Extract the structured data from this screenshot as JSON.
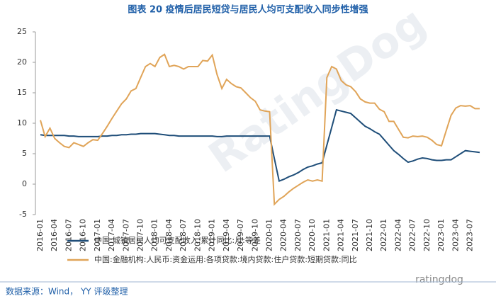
{
  "chart_data": {
    "type": "line",
    "title": "图表 20 疫情后居民短贷与居民人均可支配收入同步性增强",
    "source": "数据来源：Wind， YY 评级整理",
    "watermarks": [
      "RatingDog",
      "ratingdog"
    ],
    "categories": [
      "2016-01",
      null,
      null,
      "2016-04",
      null,
      null,
      "2016-07",
      null,
      null,
      "2016-10",
      null,
      null,
      "2017-01",
      null,
      null,
      "2017-04",
      null,
      null,
      "2017-07",
      null,
      null,
      "2017-10",
      null,
      null,
      "2018-01",
      null,
      null,
      "2018-04",
      null,
      null,
      "2018-07",
      null,
      null,
      "2018-10",
      null,
      null,
      "2019-01",
      null,
      null,
      "2019-04",
      null,
      null,
      "2019-07",
      null,
      null,
      "2019-10",
      null,
      null,
      "2020-01",
      null,
      null,
      "2020-04",
      null,
      null,
      "2020-07",
      null,
      null,
      "2020-10",
      null,
      null,
      "2021-01",
      null,
      null,
      "2021-04",
      null,
      null,
      "2021-07",
      null,
      null,
      "2021-10",
      null,
      null,
      "2022-01",
      null,
      null,
      "2022-04",
      null,
      null,
      "2022-07",
      null,
      null,
      "2022-10",
      null,
      null,
      "2023-01",
      null,
      null,
      "2023-04",
      null,
      null,
      "2023-07",
      null,
      null
    ],
    "series": [
      {
        "name": "中国:城镇居民人均可支配收入:累计同比:月:等差",
        "color": "#1f4e79",
        "values": [
          8.1,
          8.0,
          8.0,
          8.0,
          8.0,
          8.0,
          7.9,
          7.9,
          7.8,
          7.8,
          7.8,
          7.8,
          7.8,
          7.9,
          7.9,
          8.0,
          8.0,
          8.1,
          8.1,
          8.2,
          8.2,
          8.3,
          8.3,
          8.3,
          8.3,
          8.2,
          8.1,
          8.0,
          8.0,
          7.9,
          7.9,
          7.9,
          7.9,
          7.9,
          7.9,
          7.9,
          7.9,
          7.8,
          7.8,
          7.9,
          7.9,
          7.9,
          7.9,
          7.9,
          7.9,
          7.9,
          7.9,
          7.9,
          7.9,
          4.2,
          0.5,
          0.8,
          1.2,
          1.5,
          1.9,
          2.4,
          2.8,
          3.0,
          3.3,
          3.5,
          6.4,
          9.3,
          12.2,
          12.0,
          11.8,
          11.6,
          10.9,
          10.2,
          9.5,
          9.1,
          8.6,
          8.2,
          7.3,
          6.4,
          5.5,
          4.9,
          4.2,
          3.6,
          3.8,
          4.1,
          4.3,
          4.2,
          4.0,
          3.9,
          3.9,
          4.0,
          4.0,
          4.5,
          5.0,
          5.5,
          5.4,
          5.3,
          5.2
        ]
      },
      {
        "name": "中国:金融机构:人民币:资金运用:各项贷款:境内贷款:住户贷款:短期贷款:同比",
        "color": "#e0a458",
        "values": [
          10.5,
          7.8,
          9.2,
          7.5,
          6.8,
          6.2,
          6.0,
          6.8,
          6.5,
          6.2,
          6.8,
          7.3,
          7.2,
          8.3,
          9.5,
          10.8,
          12.0,
          13.2,
          14.0,
          15.3,
          15.7,
          17.5,
          19.3,
          19.8,
          19.3,
          20.8,
          21.3,
          19.3,
          19.5,
          19.3,
          18.9,
          19.3,
          19.3,
          19.3,
          20.3,
          20.2,
          21.2,
          18.0,
          15.7,
          17.2,
          16.5,
          16.0,
          15.8,
          15.0,
          14.2,
          13.6,
          12.2,
          12.0,
          11.9,
          -3.3,
          -2.5,
          -2.0,
          -1.3,
          -0.7,
          -0.2,
          0.3,
          0.7,
          0.5,
          0.7,
          0.5,
          17.5,
          19.3,
          18.9,
          17.0,
          16.3,
          16.0,
          15.2,
          14.0,
          13.5,
          13.3,
          13.3,
          12.3,
          11.9,
          10.3,
          10.3,
          9.0,
          7.7,
          7.6,
          7.9,
          7.8,
          7.9,
          7.7,
          7.2,
          6.5,
          6.3,
          8.8,
          11.3,
          12.5,
          12.9,
          12.8,
          12.9,
          12.4,
          12.4
        ]
      }
    ],
    "ylim": [
      -5,
      25
    ],
    "yticks": [
      -5,
      0,
      5,
      10,
      15,
      20,
      25
    ]
  }
}
